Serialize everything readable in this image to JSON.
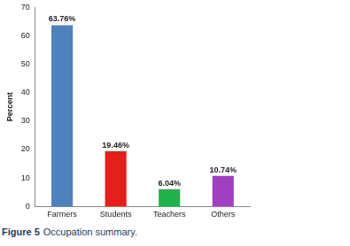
{
  "chart_data": {
    "type": "bar",
    "y_label": "Percent",
    "categories": [
      "Farmers",
      "Students",
      "Teachers",
      "Others"
    ],
    "values": [
      63.76,
      19.46,
      6.04,
      10.74
    ],
    "value_labels": [
      "63.76%",
      "19.46%",
      "6.04%",
      "10.74%"
    ],
    "colors": [
      "#4f81bd",
      "#e3201b",
      "#23b14d",
      "#a040c0"
    ],
    "ylim": [
      0,
      70
    ],
    "yticks": [
      0,
      10,
      20,
      30,
      40,
      50,
      60,
      70
    ],
    "grid": false,
    "data_labels": true
  },
  "caption": {
    "label": "Figure 5",
    "text": "Occupation summary."
  }
}
